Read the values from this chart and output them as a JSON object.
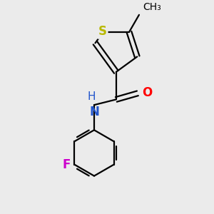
{
  "background_color": "#ebebeb",
  "bond_color": "#000000",
  "S_color": "#b8b800",
  "N_color": "#2255cc",
  "O_color": "#ff0000",
  "F_color": "#cc00cc",
  "line_width": 1.6,
  "font_size": 11,
  "figsize": [
    3.0,
    3.0
  ],
  "dpi": 100,
  "xlim": [
    -3.0,
    3.0
  ],
  "ylim": [
    -3.8,
    2.8
  ]
}
